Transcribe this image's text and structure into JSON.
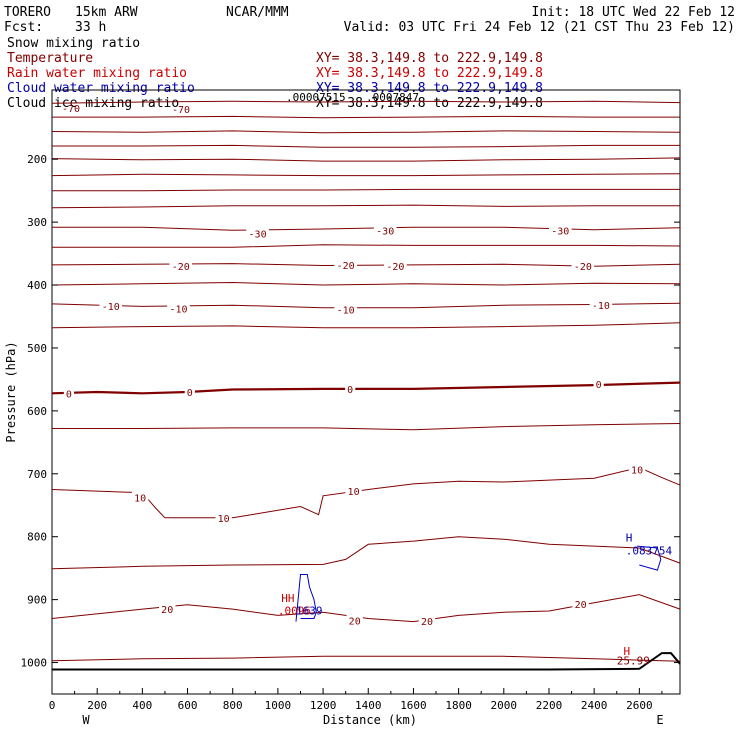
{
  "header": {
    "model": "TORERO",
    "config": "15km ARW",
    "agency": "NCAR/MMM",
    "init": "Init: 18 UTC Wed 22 Feb 12",
    "fcst_label": "Fcst:",
    "fcst_value": "33 h",
    "valid": "Valid: 03 UTC Fri 24 Feb 12 (21 CST Thu 23 Feb 12)"
  },
  "fields": [
    {
      "name": "Snow mixing ratio",
      "color": "#000000",
      "xy": ""
    },
    {
      "name": "Temperature",
      "color": "#800000",
      "xy": "XY=  38.3,149.8 to 222.9,149.8"
    },
    {
      "name": "Rain water mixing ratio",
      "color": "#cc0000",
      "xy": "XY=  38.3,149.8 to 222.9,149.8"
    },
    {
      "name": "Cloud water mixing ratio",
      "color": "#0000aa",
      "xy": "XY=  38.3,149.8 to 222.9,149.8"
    },
    {
      "name": "Cloud ice mixing ratio",
      "color": "#000000",
      "xy": "XY=  38.3,149.8 to 222.9,149.8"
    }
  ],
  "overlap_text": {
    "qv_value_1": ".00007515",
    "qv_value_2": ".0007847",
    "corner_marks": [
      "-70",
      "-70"
    ]
  },
  "chart_data": {
    "type": "line",
    "title": "",
    "xlabel": "Distance (km)",
    "ylabel": "Pressure (hPa)",
    "xlim": [
      0,
      2780
    ],
    "ylim": [
      1050,
      90
    ],
    "x_ticks": [
      0,
      200,
      400,
      600,
      800,
      1000,
      1200,
      1400,
      1600,
      1800,
      2000,
      2200,
      2400,
      2600
    ],
    "y_ticks": [
      200,
      300,
      400,
      500,
      600,
      700,
      800,
      900,
      1000
    ],
    "west_label": "W",
    "east_label": "E",
    "isotherm_color": "#800000",
    "ground_color": "#000000",
    "isotherms": [
      {
        "value": -70,
        "x": [
          0,
          400,
          800,
          1200,
          1600,
          2000,
          2400,
          2780
        ],
        "p": [
          111,
          109,
          108,
          109,
          108,
          109,
          108,
          110
        ]
      },
      {
        "value": -65,
        "x": [
          0,
          400,
          800,
          1200,
          1600,
          2000,
          2400,
          2780
        ],
        "p": [
          133,
          133,
          132,
          134,
          133,
          132,
          133,
          133
        ]
      },
      {
        "value": -60,
        "x": [
          0,
          400,
          800,
          1200,
          1600,
          2000,
          2400,
          2780
        ],
        "p": [
          156,
          157,
          155,
          158,
          157,
          155,
          156,
          157
        ]
      },
      {
        "value": -55,
        "x": [
          0,
          400,
          800,
          1200,
          1600,
          2000,
          2400,
          2780
        ],
        "p": [
          179,
          179,
          178,
          181,
          181,
          180,
          178,
          178
        ]
      },
      {
        "value": -50,
        "x": [
          0,
          400,
          800,
          1200,
          1600,
          2000,
          2400,
          2780
        ],
        "p": [
          199,
          201,
          200,
          203,
          203,
          201,
          200,
          198
        ]
      },
      {
        "value": -45,
        "x": [
          0,
          400,
          800,
          1200,
          1600,
          2000,
          2400,
          2780
        ],
        "p": [
          226,
          224,
          225,
          226,
          226,
          225,
          224,
          223
        ]
      },
      {
        "value": -40,
        "x": [
          0,
          400,
          800,
          1200,
          1600,
          2000,
          2400,
          2780
        ],
        "p": [
          250,
          250,
          249,
          249,
          248,
          248,
          248,
          248
        ]
      },
      {
        "value": -35,
        "x": [
          0,
          400,
          800,
          1200,
          1600,
          2000,
          2400,
          2780
        ],
        "p": [
          277,
          276,
          274,
          274,
          273,
          275,
          274,
          274
        ]
      },
      {
        "value": -30,
        "x": [
          0,
          400,
          800,
          1200,
          1600,
          2000,
          2400,
          2780
        ],
        "p": [
          308,
          308,
          313,
          311,
          308,
          308,
          312,
          309
        ]
      },
      {
        "value": -25,
        "x": [
          0,
          400,
          800,
          1200,
          1600,
          2000,
          2400,
          2780
        ],
        "p": [
          340,
          340,
          340,
          336,
          337,
          337,
          337,
          338
        ]
      },
      {
        "value": -20,
        "x": [
          0,
          400,
          800,
          1200,
          1600,
          2000,
          2400,
          2780
        ],
        "p": [
          368,
          367,
          366,
          369,
          368,
          367,
          370,
          367
        ]
      },
      {
        "value": -15,
        "x": [
          0,
          400,
          800,
          1200,
          1600,
          2000,
          2400,
          2780
        ],
        "p": [
          400,
          398,
          396,
          400,
          398,
          400,
          397,
          398
        ]
      },
      {
        "value": -10,
        "x": [
          0,
          400,
          800,
          1200,
          1600,
          2000,
          2400,
          2780
        ],
        "p": [
          430,
          434,
          432,
          436,
          436,
          432,
          431,
          429
        ]
      },
      {
        "value": -5,
        "x": [
          0,
          400,
          800,
          1200,
          1600,
          2000,
          2400,
          2780
        ],
        "p": [
          468,
          466,
          465,
          468,
          468,
          466,
          464,
          460
        ]
      },
      {
        "value": 0,
        "bold": true,
        "x": [
          0,
          200,
          400,
          600,
          800,
          1200,
          1600,
          2000,
          2400,
          2780
        ],
        "p": [
          572,
          570,
          572,
          570,
          566,
          565,
          565,
          562,
          559,
          555
        ]
      },
      {
        "value": 5,
        "x": [
          0,
          400,
          800,
          1200,
          1600,
          2000,
          2400,
          2780
        ],
        "p": [
          628,
          628,
          627,
          627,
          630,
          625,
          622,
          620
        ]
      },
      {
        "value": 10,
        "x": [
          0,
          400,
          460,
          500,
          800,
          1100,
          1180,
          1200,
          1400,
          1600,
          1800,
          2000,
          2200,
          2400,
          2600,
          2700,
          2780
        ],
        "p": [
          725,
          730,
          755,
          770,
          770,
          752,
          765,
          735,
          725,
          716,
          712,
          713,
          710,
          707,
          690,
          706,
          718
        ]
      },
      {
        "value": 15,
        "x": [
          0,
          400,
          800,
          1200,
          1300,
          1400,
          1600,
          1800,
          2000,
          2200,
          2400,
          2600,
          2780
        ],
        "p": [
          851,
          847,
          845,
          844,
          836,
          812,
          807,
          800,
          804,
          812,
          815,
          818,
          842
        ]
      },
      {
        "value": 20,
        "x": [
          0,
          400,
          600,
          800,
          1000,
          1200,
          1400,
          1600,
          1800,
          2000,
          2200,
          2400,
          2600,
          2780
        ],
        "p": [
          930,
          915,
          908,
          915,
          925,
          920,
          930,
          935,
          925,
          920,
          918,
          905,
          892,
          915
        ]
      },
      {
        "value": 25,
        "x": [
          0,
          400,
          800,
          1200,
          1600,
          2000,
          2400,
          2780
        ],
        "p": [
          997,
          994,
          993,
          990,
          990,
          990,
          994,
          998
        ]
      }
    ],
    "ground": {
      "x": [
        0,
        500,
        1000,
        1500,
        2000,
        2200,
        2600,
        2700,
        2740,
        2780
      ],
      "p": [
        1011,
        1011,
        1011,
        1011,
        1011,
        1011,
        1010,
        985,
        985,
        1002
      ]
    },
    "cloud_water_contour": {
      "x": [
        1100,
        1160,
        1170,
        1160,
        1140,
        1130,
        1100,
        1080
      ],
      "p": [
        930,
        930,
        920,
        900,
        880,
        860,
        860,
        935
      ]
    },
    "cloud_water_contour_east": {
      "x": [
        2590,
        2680,
        2695,
        2680,
        2600
      ],
      "p": [
        815,
        818,
        836,
        853,
        845
      ]
    },
    "contour_labels": [
      {
        "text": "-30",
        "x": 910,
        "p": 318
      },
      {
        "text": "-30",
        "x": 1475,
        "p": 313
      },
      {
        "text": "-30",
        "x": 2250,
        "p": 313
      },
      {
        "text": "-20",
        "x": 570,
        "p": 370
      },
      {
        "text": "-20",
        "x": 1300,
        "p": 368
      },
      {
        "text": "-20",
        "x": 1520,
        "p": 370
      },
      {
        "text": "-20",
        "x": 2350,
        "p": 370
      },
      {
        "text": "-10",
        "x": 260,
        "p": 433
      },
      {
        "text": "-10",
        "x": 560,
        "p": 437
      },
      {
        "text": "-10",
        "x": 1300,
        "p": 439
      },
      {
        "text": "-10",
        "x": 2430,
        "p": 432
      },
      {
        "text": "0",
        "x": 75,
        "p": 572
      },
      {
        "text": "0",
        "x": 610,
        "p": 570
      },
      {
        "text": "0",
        "x": 1320,
        "p": 565
      },
      {
        "text": "0",
        "x": 2420,
        "p": 557
      },
      {
        "text": "10",
        "x": 390,
        "p": 738
      },
      {
        "text": "10",
        "x": 760,
        "p": 770
      },
      {
        "text": "10",
        "x": 1335,
        "p": 727
      },
      {
        "text": "10",
        "x": 2590,
        "p": 693
      },
      {
        "text": "20",
        "x": 510,
        "p": 915
      },
      {
        "text": "20",
        "x": 1340,
        "p": 933
      },
      {
        "text": "20",
        "x": 1660,
        "p": 934
      },
      {
        "text": "20",
        "x": 2340,
        "p": 907
      }
    ],
    "markers": [
      {
        "text": "HH",
        "color": "#cc0000",
        "x": 1015,
        "p": 904
      },
      {
        "text": ".0096",
        "color": "#cc0000",
        "x": 1000,
        "p": 924
      },
      {
        "text": "1639",
        "color": "#0000aa",
        "x": 1080,
        "p": 924
      },
      {
        "text": "H",
        "color": "#0000aa",
        "x": 2540,
        "p": 808
      },
      {
        "text": ".083754",
        "color": "#0000aa",
        "x": 2540,
        "p": 828
      },
      {
        "text": "H",
        "color": "#cc0000",
        "x": 2530,
        "p": 988
      },
      {
        "text": "25.99",
        "color": "#800000",
        "x": 2500,
        "p": 1003
      }
    ]
  }
}
